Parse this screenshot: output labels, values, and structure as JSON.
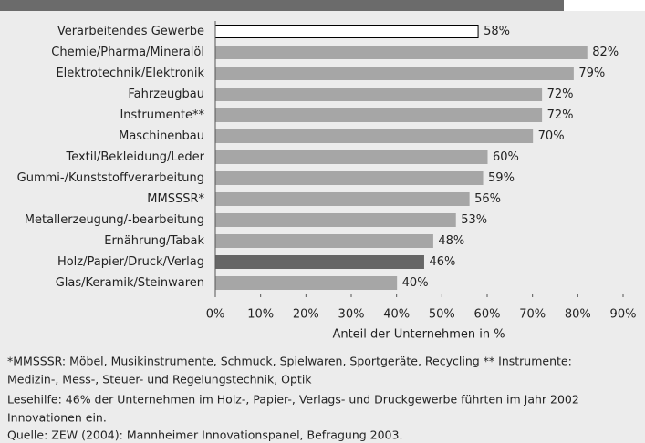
{
  "chart_data": {
    "type": "barh",
    "categories": [
      "Verarbeitendes Gewerbe",
      "Chemie/Pharma/Mineralöl",
      "Elektrotechnik/Elektronik",
      "Fahrzeugbau",
      "Instrumente**",
      "Maschinenbau",
      "Textil/Bekleidung/Leder",
      "Gummi-/Kunststoffverarbeitung",
      "MMSSSR*",
      "Metallerzeugung/-bearbeitung",
      "Ernährung/Tabak",
      "Holz/Papier/Druck/Verlag",
      "Glas/Keramik/Steinwaren"
    ],
    "values": [
      58,
      82,
      79,
      72,
      72,
      70,
      60,
      59,
      56,
      53,
      48,
      46,
      40
    ],
    "value_labels": [
      "58%",
      "82%",
      "79%",
      "72%",
      "72%",
      "70%",
      "60%",
      "59%",
      "56%",
      "53%",
      "48%",
      "46%",
      "40%"
    ],
    "colors": [
      "#ffffff",
      "#a6a6a6",
      "#a6a6a6",
      "#a6a6a6",
      "#a6a6a6",
      "#a6a6a6",
      "#a6a6a6",
      "#a6a6a6",
      "#a6a6a6",
      "#a6a6a6",
      "#a6a6a6",
      "#666666",
      "#a6a6a6"
    ],
    "edgecolors": [
      "#000000",
      "#a6a6a6",
      "#a6a6a6",
      "#a6a6a6",
      "#a6a6a6",
      "#a6a6a6",
      "#a6a6a6",
      "#a6a6a6",
      "#a6a6a6",
      "#a6a6a6",
      "#a6a6a6",
      "#666666",
      "#a6a6a6"
    ],
    "xlim": [
      0,
      90
    ],
    "xticks": [
      {
        "value": 0,
        "label": "0%"
      },
      {
        "value": 10,
        "label": "10%"
      },
      {
        "value": 20,
        "label": "20%"
      },
      {
        "value": 30,
        "label": "30%"
      },
      {
        "value": 40,
        "label": "40%"
      },
      {
        "value": 50,
        "label": "50%"
      },
      {
        "value": 60,
        "label": "60%"
      },
      {
        "value": 70,
        "label": "70%"
      },
      {
        "value": 80,
        "label": "80%"
      },
      {
        "value": 90,
        "label": "90%"
      }
    ],
    "xlabel": "Anteil der Unternehmen in %",
    "notes": [
      "*MMSSSR: Möbel, Musikinstrumente, Schmuck, Spielwaren, Sportgeräte, Recycling ** Instrumente:",
      "Medizin-, Mess-, Steuer- und Regelungstechnik, Optik",
      "Lesehilfe: 46% der  Unternehmen im Holz-, Papier-, Verlags- und Druckgewerbe  führten im Jahr 2002",
      "Innovationen ein.",
      "Quelle: ZEW (2004): Mannheimer Innovationspanel, Befragung 2003."
    ]
  }
}
